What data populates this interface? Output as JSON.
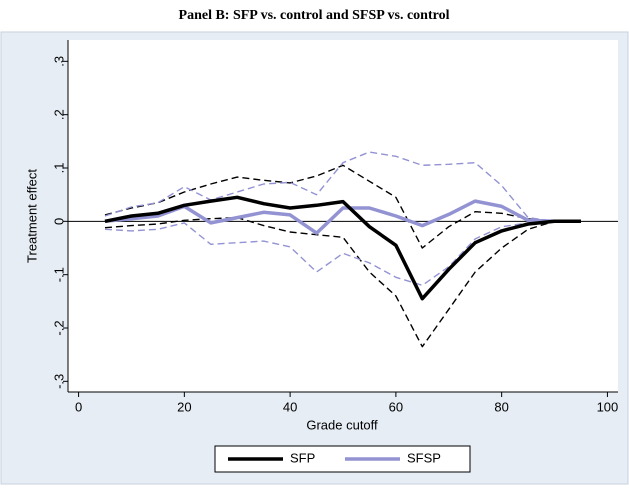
{
  "chart_data": {
    "type": "line",
    "title": "Panel B: SFP vs. control and SFSP vs. control",
    "xlabel": "Grade cutoff",
    "ylabel": "Treatment effect",
    "x": [
      5,
      10,
      15,
      20,
      25,
      30,
      35,
      40,
      45,
      50,
      55,
      60,
      65,
      70,
      75,
      80,
      85,
      90,
      95
    ],
    "series": [
      {
        "name": "SFP",
        "color": "#000000",
        "style": "solid",
        "values": [
          0,
          0.01,
          0.015,
          0.03,
          0.038,
          0.045,
          0.033,
          0.025,
          0.03,
          0.037,
          -0.01,
          -0.045,
          -0.145,
          -0.09,
          -0.04,
          -0.018,
          -0.005,
          0,
          0
        ]
      },
      {
        "name": "SFSP",
        "color": "#9393d4",
        "style": "solid",
        "values": [
          0,
          0.005,
          0.01,
          0.028,
          -0.003,
          0.007,
          0.017,
          0.012,
          -0.022,
          0.025,
          0.025,
          0.01,
          -0.008,
          0.013,
          0.038,
          0.028,
          0.002,
          0,
          0
        ]
      },
      {
        "color": "#000000",
        "style": "dashed",
        "values": [
          0.012,
          0.025,
          0.035,
          0.055,
          0.07,
          0.083,
          0.077,
          0.072,
          0.085,
          0.105,
          0.075,
          0.045,
          -0.05,
          -0.01,
          0.018,
          0.015,
          0.005,
          0,
          0
        ]
      },
      {
        "color": "#000000",
        "style": "dashed",
        "values": [
          -0.012,
          -0.008,
          -0.005,
          0.002,
          0.005,
          0.007,
          -0.008,
          -0.02,
          -0.025,
          -0.03,
          -0.095,
          -0.14,
          -0.235,
          -0.165,
          -0.095,
          -0.05,
          -0.015,
          0,
          0
        ]
      },
      {
        "color": "#9393d4",
        "style": "dashed",
        "values": [
          0.01,
          0.027,
          0.035,
          0.065,
          0.04,
          0.055,
          0.07,
          0.073,
          0.05,
          0.11,
          0.13,
          0.122,
          0.105,
          0.107,
          0.11,
          0.067,
          0.007,
          0,
          0
        ]
      },
      {
        "color": "#9393d4",
        "style": "dashed",
        "values": [
          -0.015,
          -0.018,
          -0.015,
          -0.003,
          -0.043,
          -0.04,
          -0.037,
          -0.048,
          -0.095,
          -0.06,
          -0.078,
          -0.105,
          -0.12,
          -0.085,
          -0.033,
          -0.01,
          -0.003,
          0,
          0
        ]
      }
    ],
    "xlim": [
      -2,
      102
    ],
    "xticks": [
      0,
      20,
      40,
      60,
      80,
      100
    ],
    "ylim": [
      -0.32,
      0.34
    ],
    "yticks": [
      {
        "value": 0.3,
        "label": ".3"
      },
      {
        "value": 0.2,
        "label": ".2"
      },
      {
        "value": 0.1,
        "label": ".1"
      },
      0,
      {
        "value": -0.1,
        "label": "-.1"
      },
      {
        "value": -0.2,
        "label": "-.2"
      },
      {
        "value": -0.3,
        "label": "-.3"
      }
    ],
    "reference_line": 0
  }
}
